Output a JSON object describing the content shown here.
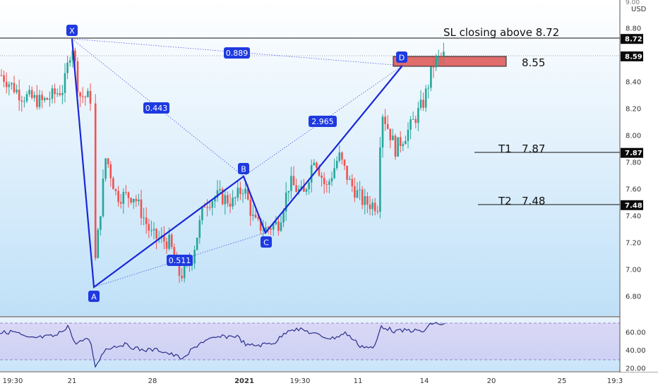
{
  "chart_data": {
    "type": "candlestick",
    "currency": "USD",
    "price_axis_ticks": [
      "9.00",
      "8.80",
      "8.60",
      "8.40",
      "8.20",
      "8.00",
      "7.80",
      "7.60",
      "7.40",
      "7.20",
      "7.00",
      "6.80"
    ],
    "price_axis_top_visible": "9.00",
    "time_axis_ticks": [
      "19:30",
      "21",
      "28",
      "2021",
      "19:30",
      "11",
      "14",
      "20",
      "25",
      "19:3"
    ],
    "rsi_axis_ticks": [
      "60.00",
      "40.00",
      "20.00"
    ],
    "last_price": "8.59",
    "price_badges": [
      {
        "id": "sl",
        "label": "8.72",
        "value": 8.72
      },
      {
        "id": "last",
        "label": "8.59",
        "value": 8.59
      },
      {
        "id": "t1",
        "label": "7.87",
        "value": 7.87
      },
      {
        "id": "t2",
        "label": "7.48",
        "value": 7.48
      }
    ],
    "annotations": {
      "stop_loss": "SL closing above 8.72",
      "entry_zone": "8.55",
      "target1": "T1   7.87",
      "target2": "T2   7.48"
    },
    "pattern_points": [
      {
        "label": "X",
        "price": 8.72
      },
      {
        "label": "A",
        "price": 6.85
      },
      {
        "label": "B",
        "price": 7.68
      },
      {
        "label": "C",
        "price": 7.26
      },
      {
        "label": "D",
        "price": 8.52
      }
    ],
    "ratios": [
      "0.889",
      "0.443",
      "2.965",
      "0.511"
    ],
    "colors": {
      "pattern": "#1a27d6",
      "up_candle": "#26a69a",
      "down_candle": "#ef5350",
      "zone_fill": "#e06c6c",
      "label_bg": "#1f3ae0"
    }
  }
}
